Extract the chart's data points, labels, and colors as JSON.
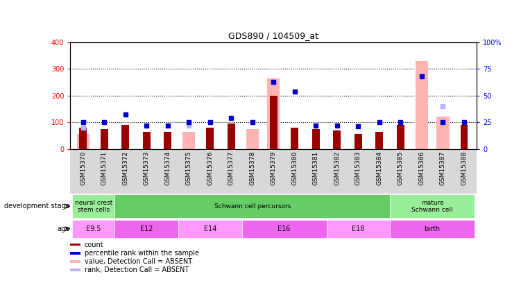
{
  "title": "GDS890 / 104509_at",
  "samples": [
    "GSM15370",
    "GSM15371",
    "GSM15372",
    "GSM15373",
    "GSM15374",
    "GSM15375",
    "GSM15376",
    "GSM15377",
    "GSM15378",
    "GSM15379",
    "GSM15380",
    "GSM15381",
    "GSM15382",
    "GSM15383",
    "GSM15384",
    "GSM15385",
    "GSM15386",
    "GSM15387",
    "GSM15388"
  ],
  "count_values": [
    80,
    75,
    90,
    65,
    65,
    0,
    80,
    95,
    0,
    200,
    80,
    75,
    70,
    55,
    65,
    90,
    0,
    0,
    90
  ],
  "rank_values": [
    25,
    25,
    32,
    22,
    22,
    25,
    25,
    29,
    25,
    63,
    54,
    22,
    22,
    21,
    25,
    25,
    68,
    25,
    25
  ],
  "absent_count": [
    55,
    0,
    0,
    0,
    0,
    65,
    0,
    0,
    75,
    265,
    0,
    0,
    0,
    0,
    0,
    0,
    330,
    120,
    0
  ],
  "absent_rank": [
    20,
    0,
    0,
    0,
    0,
    22,
    0,
    0,
    25,
    62,
    0,
    0,
    0,
    0,
    0,
    0,
    68,
    40,
    0
  ],
  "count_color": "#990000",
  "rank_color": "#0000cc",
  "absent_count_color": "#ffb3b3",
  "absent_rank_color": "#b3b3ff",
  "ylim_left": [
    0,
    400
  ],
  "ylim_right": [
    0,
    100
  ],
  "yticks_left": [
    0,
    100,
    200,
    300,
    400
  ],
  "yticks_right": [
    0,
    25,
    50,
    75,
    100
  ],
  "ytick_labels_right": [
    "0",
    "25",
    "50",
    "75",
    "100%"
  ],
  "stage_info": [
    [
      0,
      2,
      "#99ee99",
      "neural crest\nstem cells"
    ],
    [
      2,
      15,
      "#66cc66",
      "Schwann cell percursors"
    ],
    [
      15,
      19,
      "#99ee99",
      "mature\nSchwann cell"
    ]
  ],
  "age_info": [
    [
      0,
      2,
      "#ff99ff",
      "E9.5"
    ],
    [
      2,
      5,
      "#ee66ee",
      "E12"
    ],
    [
      5,
      8,
      "#ff99ff",
      "E14"
    ],
    [
      8,
      12,
      "#ee66ee",
      "E16"
    ],
    [
      12,
      15,
      "#ff99ff",
      "E18"
    ],
    [
      15,
      19,
      "#ee66ee",
      "birth"
    ]
  ],
  "legend_items": [
    [
      "#990000",
      "count"
    ],
    [
      "#0000cc",
      "percentile rank within the sample"
    ],
    [
      "#ffb3b3",
      "value, Detection Call = ABSENT"
    ],
    [
      "#b3b3ff",
      "rank, Detection Call = ABSENT"
    ]
  ]
}
